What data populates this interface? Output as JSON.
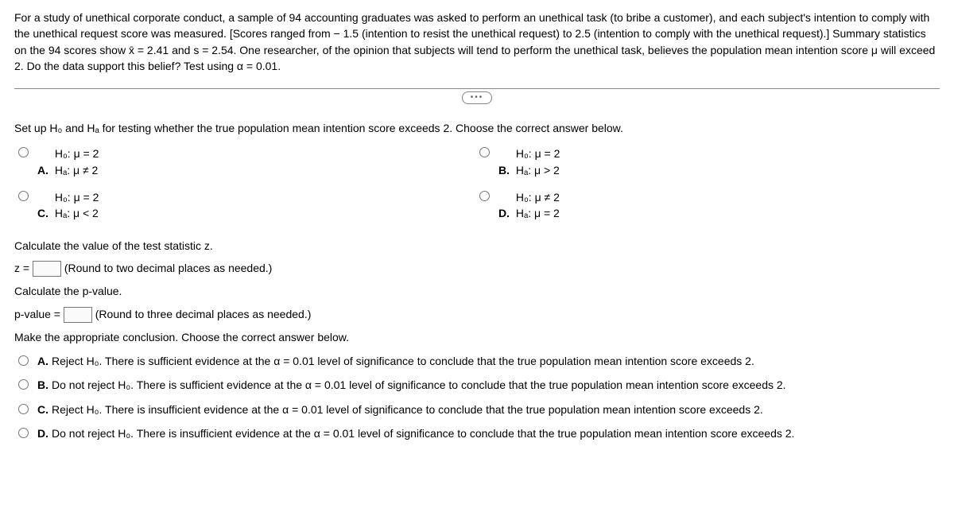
{
  "problem": {
    "text": "For a study of unethical corporate conduct, a sample of 94 accounting graduates was asked to perform an unethical task (to bribe a customer), and each subject's intention to comply with the unethical request score was measured. [Scores ranged from − 1.5 (intention to resist the unethical request) to 2.5 (intention to comply with the unethical request).] Summary statistics on the 94 scores show x̄ = 2.41 and s = 2.54. One researcher, of the opinion that subjects will tend to perform the unethical task, believes the population mean intention score μ will exceed 2. Do the data support this belief? Test using α = 0.01."
  },
  "setup_instruction": "Set up H₀ and Hₐ for testing whether the true population mean intention score exceeds 2. Choose the correct answer below.",
  "hypo_choices": {
    "A": {
      "h0": "H₀: μ = 2",
      "ha": "Hₐ: μ ≠ 2"
    },
    "B": {
      "h0": "H₀: μ = 2",
      "ha": "Hₐ: μ > 2"
    },
    "C": {
      "h0": "H₀: μ = 2",
      "ha": "Hₐ: μ < 2"
    },
    "D": {
      "h0": "H₀: μ ≠ 2",
      "ha": "Hₐ: μ = 2"
    }
  },
  "calc": {
    "z_label": "Calculate the value of the test statistic z.",
    "z_prefix": "z =",
    "z_hint": "(Round to two decimal places as needed.)",
    "p_label": "Calculate the p-value.",
    "p_prefix": "p-value =",
    "p_hint": "(Round to three decimal places as needed.)"
  },
  "conclusion": {
    "prompt": "Make the appropriate conclusion. Choose the correct answer below.",
    "A": "Reject H₀. There is sufficient evidence at the α = 0.01 level of significance to conclude that the true population mean intention score exceeds 2.",
    "B": "Do not reject H₀. There is sufficient evidence at the α = 0.01 level of significance to conclude that the true population mean intention score exceeds 2.",
    "C": "Reject H₀. There is insufficient evidence at the α = 0.01 level of significance to conclude that the true population mean intention score exceeds 2.",
    "D": "Do not reject H₀. There is insufficient evidence at the α = 0.01 level of significance to conclude that the true population mean intention score exceeds 2."
  },
  "letters": {
    "A": "A.",
    "B": "B.",
    "C": "C.",
    "D": "D."
  }
}
